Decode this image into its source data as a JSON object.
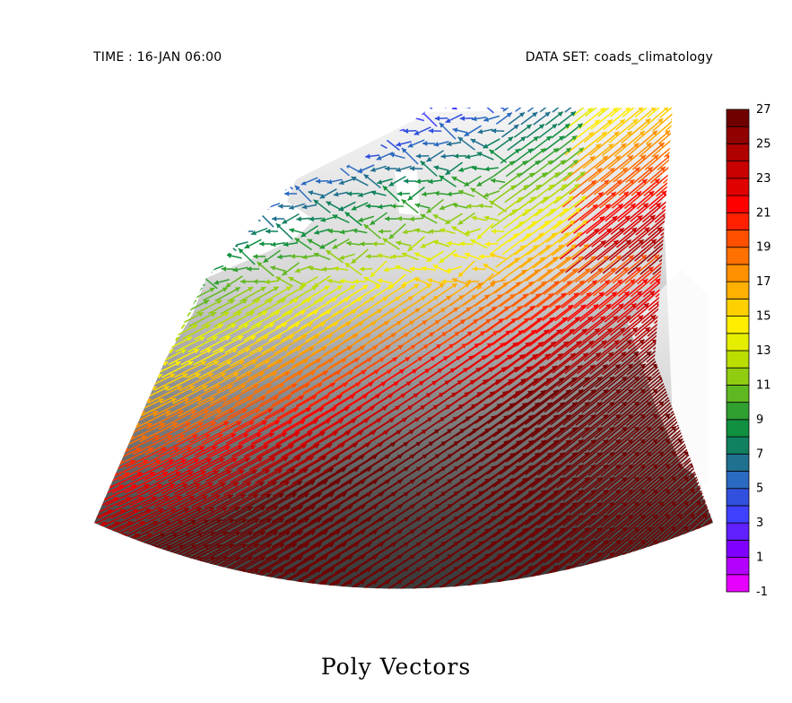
{
  "header": {
    "time_label": "TIME : 16-JAN 06:00",
    "dataset_label": "DATA SET: coads_climatology"
  },
  "chart_data": {
    "type": "vector",
    "title": "Poly Vectors",
    "colorbar": {
      "min": -1,
      "max": 27,
      "step": 1,
      "tick_labels": [
        "27",
        "25",
        "23",
        "21",
        "19",
        "17",
        "15",
        "13",
        "11",
        "9",
        "7",
        "5",
        "3",
        "1",
        "-1"
      ],
      "colors": [
        "#e600ff",
        "#b400ff",
        "#8000ff",
        "#6020ff",
        "#4040ff",
        "#3050dd",
        "#2a6ac0",
        "#207090",
        "#108060",
        "#109040",
        "#30a030",
        "#60b820",
        "#90cc10",
        "#bbdd00",
        "#e6ee00",
        "#ffee00",
        "#ffd000",
        "#ffb000",
        "#ff9000",
        "#ff7000",
        "#ff5000",
        "#ff2000",
        "#ff0000",
        "#e00000",
        "#c80000",
        "#b00000",
        "#900000",
        "#700000"
      ]
    },
    "land_shading": "grayscale"
  }
}
